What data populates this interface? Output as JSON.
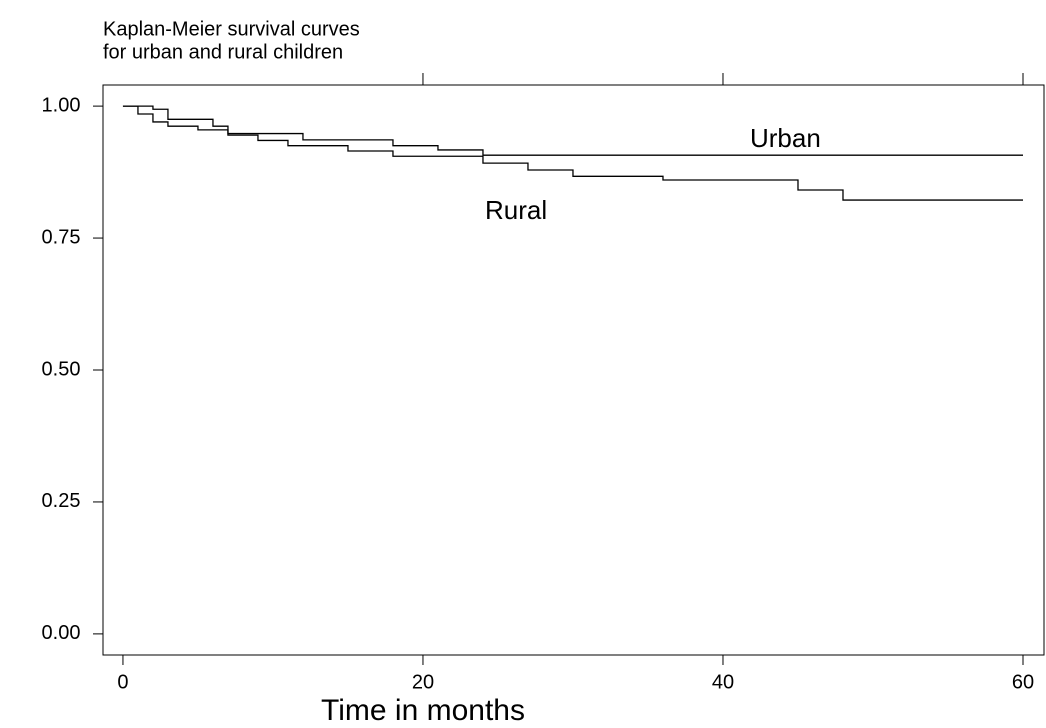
{
  "chart_data": {
    "type": "step",
    "title": [
      "Kaplan-Meier survival curves",
      "for urban and rural children"
    ],
    "x_label": "Time in months",
    "annotations": [
      "Urban",
      "Rural"
    ],
    "series": [
      {
        "name": "Urban",
        "color": "#000000",
        "x": [
          0,
          2,
          3,
          6,
          7,
          12,
          18,
          21,
          24,
          60
        ],
        "values": [
          1.0,
          0.994,
          0.975,
          0.962,
          0.948,
          0.936,
          0.925,
          0.917,
          0.907,
          0.907
        ]
      },
      {
        "name": "Rural",
        "color": "#000000",
        "x": [
          0,
          1,
          2,
          3,
          5,
          7,
          9,
          11,
          15,
          18,
          24,
          27,
          30,
          36,
          45,
          48,
          60
        ],
        "values": [
          1.0,
          0.985,
          0.97,
          0.962,
          0.955,
          0.945,
          0.935,
          0.925,
          0.915,
          0.905,
          0.892,
          0.879,
          0.867,
          0.86,
          0.841,
          0.822,
          0.822
        ]
      }
    ],
    "xlim": [
      -1.33,
      61.4
    ],
    "ylim": [
      -0.04,
      1.04
    ],
    "xticks": [
      0,
      20,
      40,
      60
    ],
    "yticks": [
      {
        "value": 0,
        "label": "0.00"
      },
      {
        "value": 0.25,
        "label": "0.25"
      },
      {
        "value": 0.5,
        "label": "0.50"
      },
      {
        "value": 0.75,
        "label": "0.75"
      },
      {
        "value": 1,
        "label": "1.00"
      }
    ]
  }
}
